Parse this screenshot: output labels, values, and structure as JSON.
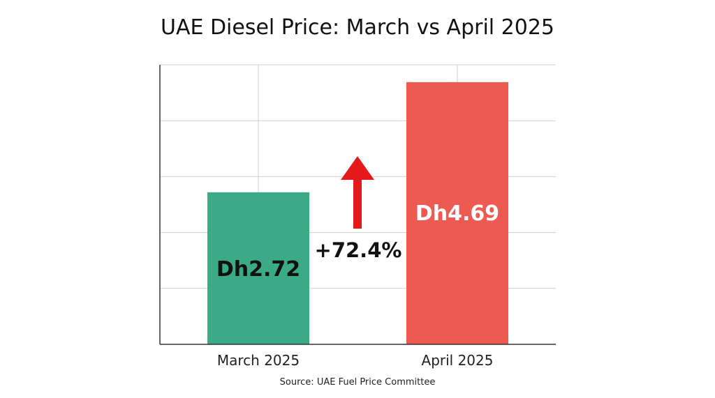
{
  "chart_data": {
    "type": "bar",
    "title": "UAE Diesel Price: March vs April 2025",
    "categories": [
      "March 2025",
      "April 2025"
    ],
    "values": [
      2.72,
      4.69
    ],
    "data_labels": [
      "Dh2.72",
      "Dh4.69"
    ],
    "bar_colors": [
      "#3aaa87",
      "#ec5a52"
    ],
    "data_label_colors": [
      "#111111",
      "#ffffff"
    ],
    "ylim": [
      0,
      5
    ],
    "grid": true,
    "annotation": {
      "text": "+72.4%",
      "arrow": "up",
      "arrow_color": "#e3191b"
    },
    "source": "Source: UAE Fuel Price Committee"
  }
}
